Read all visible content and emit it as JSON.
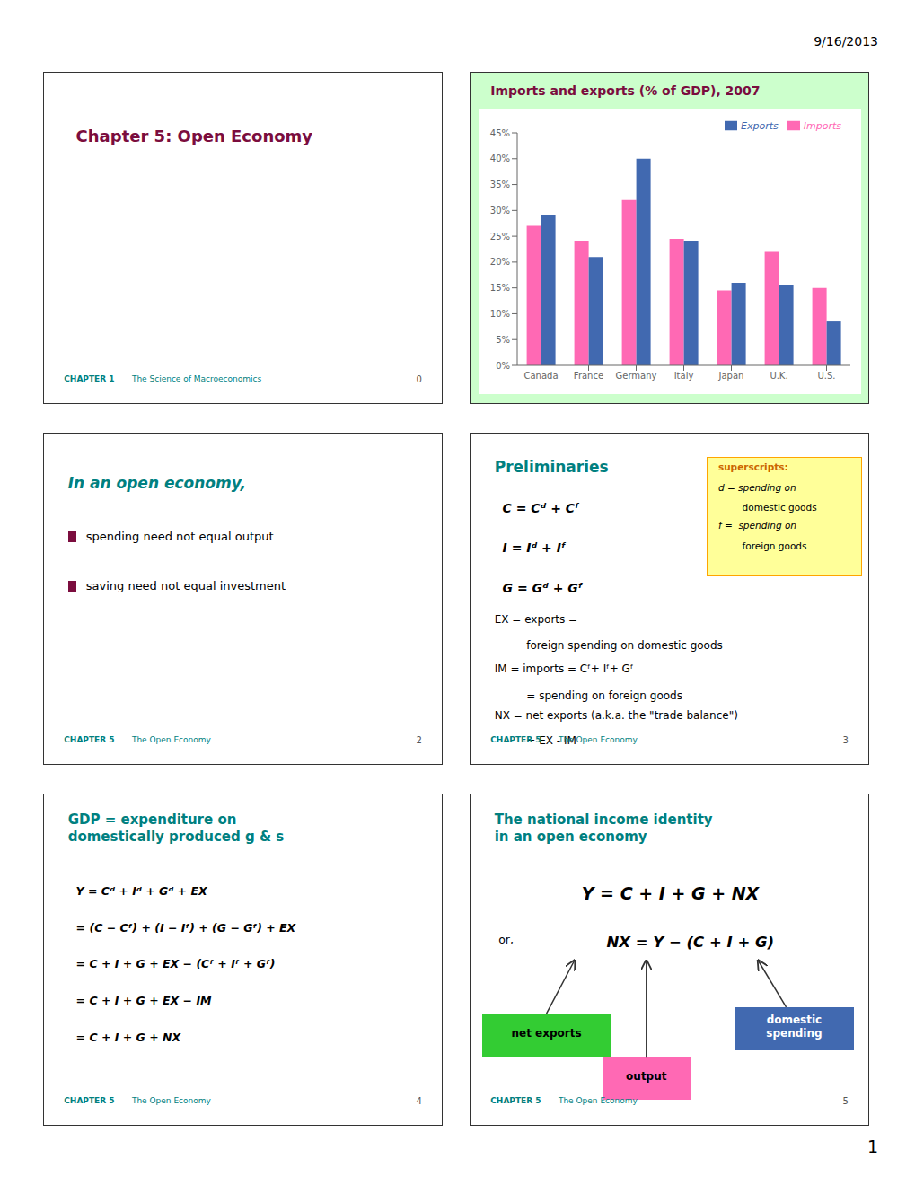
{
  "chart_data": {
    "type": "bar",
    "title": "Imports and exports (% of GDP), 2007",
    "categories": [
      "Canada",
      "France",
      "Germany",
      "Italy",
      "Japan",
      "U.K.",
      "U.S."
    ],
    "series": [
      {
        "name": "Imports",
        "color": "#FF69B4",
        "values": [
          27,
          24,
          32,
          24.5,
          14.5,
          22,
          15
        ]
      },
      {
        "name": "Exports",
        "color": "#4169B0",
        "values": [
          29,
          21,
          40,
          24,
          16,
          15.5,
          8.5
        ]
      }
    ],
    "ylim": [
      0,
      45
    ],
    "yticks": [
      {
        "value": 0,
        "label": "0%"
      },
      {
        "value": 5,
        "label": "5%"
      },
      {
        "value": 10,
        "label": "10%"
      },
      {
        "value": 15,
        "label": "15%"
      },
      {
        "value": 20,
        "label": "20%"
      },
      {
        "value": 25,
        "label": "25%"
      },
      {
        "value": 30,
        "label": "30%"
      },
      {
        "value": 35,
        "label": "35%"
      },
      {
        "value": 40,
        "label": "40%"
      },
      {
        "value": 45,
        "label": "45%"
      }
    ],
    "grid": false,
    "legend": "upper right",
    "annotations": [
      [
        "9/16/2013",
        "1"
      ],
      [
        "Chapter 5: Open Economy",
        "CHAPTER 1",
        "The Science of Macroeconomics",
        "0"
      ],
      [
        "In an open economy,",
        "spending need not equal output",
        "saving need not equal investment",
        "CHAPTER 5",
        "The Open Economy",
        "2"
      ],
      [
        "Preliminaries",
        "C = Cᵈ + Cᶠ",
        "I = Iᵈ + Iᶠ",
        "G = Gᵈ + Gᶠ",
        "EX = exports =",
        "foreign spending on domestic goods",
        "IM = imports = Cᶠ+ Iᶠ+ Gᶠ",
        "= spending on foreign goods",
        "NX = net exports (a.k.a. the \"trade balance\")",
        "= EX - IM",
        "superscripts:",
        "d = spending on",
        "domestic goods",
        "f =  spending on",
        "foreign goods",
        "CHAPTER 5",
        "The Open Economy",
        "3"
      ],
      [
        "GDP = expenditure on\ndomestically produced g & s",
        "Y = Cᵈ + Iᵈ + Gᵈ + EX",
        "= (C − Cᶠ) + (I − Iᶠ) + (G − Gᶠ) + EX",
        "= C + I + G + EX − (Cᶠ + Iᶠ + Gᶠ)",
        "= C + I + G + EX − IM",
        "= C + I + G + NX",
        "CHAPTER 5",
        "The Open Economy",
        "4"
      ],
      [
        "The national income identity\nin an open economy",
        "Y = C + I + G + NX",
        "or,",
        "NX = Y − (C + I + G)",
        "net exports",
        "output",
        "domestic\nspending",
        "CHAPTER 5",
        "The Open Economy",
        "5"
      ]
    ]
  }
}
